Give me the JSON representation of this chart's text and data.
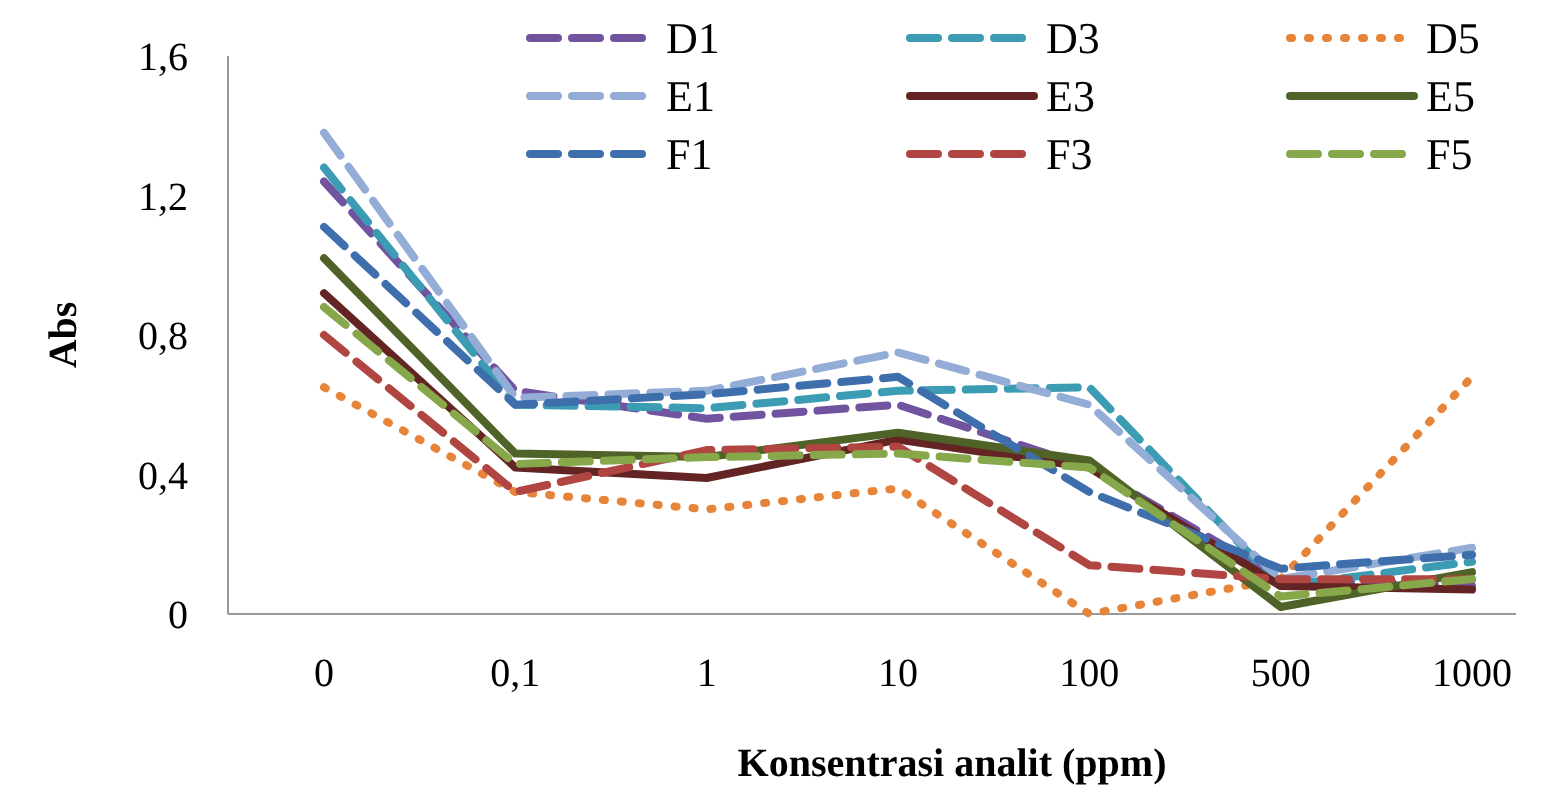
{
  "chart_data": {
    "type": "line",
    "xlabel": "Konsentrasi analit (ppm)",
    "ylabel": "Abs",
    "categories": [
      "0",
      "0,1",
      "1",
      "10",
      "100",
      "500",
      "1000"
    ],
    "ylim": [
      0,
      1.6
    ],
    "yticks": [
      0,
      {
        "value": 0.4,
        "label": "0,4"
      },
      {
        "value": 0.8,
        "label": "0,8"
      },
      {
        "value": 1.2,
        "label": "1,2"
      },
      {
        "value": 1.6,
        "label": "1,6"
      }
    ],
    "grid": false,
    "legend": "top right",
    "marker": "none",
    "series": [
      {
        "name": "D1",
        "color": "#7153a0",
        "line_style": "dashed",
        "values": [
          1.24,
          0.64,
          0.56,
          0.6,
          0.42,
          0.1,
          0.08
        ]
      },
      {
        "name": "D3",
        "color": "#3b9cb3",
        "line_style": "dashed",
        "values": [
          1.28,
          0.6,
          0.59,
          0.64,
          0.65,
          0.08,
          0.15
        ]
      },
      {
        "name": "D5",
        "color": "#e6853a",
        "line_style": "dotted",
        "values": [
          0.65,
          0.35,
          0.3,
          0.36,
          0.0,
          0.1,
          0.68
        ]
      },
      {
        "name": "E1",
        "color": "#94add6",
        "line_style": "dashed",
        "values": [
          1.38,
          0.62,
          0.64,
          0.75,
          0.6,
          0.1,
          0.19
        ]
      },
      {
        "name": "E3",
        "color": "#632423",
        "line_style": "solid",
        "values": [
          0.92,
          0.42,
          0.39,
          0.5,
          0.42,
          0.08,
          0.07
        ]
      },
      {
        "name": "E5",
        "color": "#4f6228",
        "line_style": "solid",
        "values": [
          1.02,
          0.46,
          0.45,
          0.52,
          0.44,
          0.02,
          0.12
        ]
      },
      {
        "name": "F1",
        "color": "#3e6eac",
        "line_style": "dashed",
        "values": [
          1.11,
          0.6,
          0.63,
          0.68,
          0.35,
          0.13,
          0.17
        ]
      },
      {
        "name": "F3",
        "color": "#b04542",
        "line_style": "dashed",
        "values": [
          0.8,
          0.35,
          0.47,
          0.48,
          0.14,
          0.1,
          0.1
        ]
      },
      {
        "name": "F5",
        "color": "#86a84a",
        "line_style": "dashed",
        "values": [
          0.88,
          0.43,
          0.45,
          0.46,
          0.42,
          0.05,
          0.1
        ]
      }
    ]
  }
}
